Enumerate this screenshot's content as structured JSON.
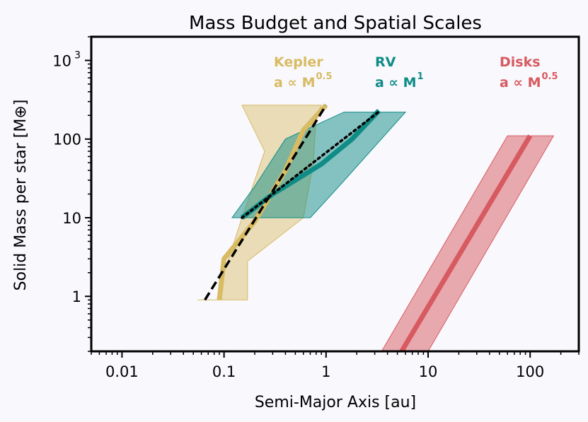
{
  "chart_data": {
    "type": "line",
    "title": "Mass Budget and Spatial Scales",
    "xlabel": "Semi-Major Axis [au]",
    "ylabel": "Solid Mass per star [M⊕]",
    "xscale": "log",
    "yscale": "log",
    "xlim": [
      0.005,
      300
    ],
    "ylim": [
      0.2,
      2000
    ],
    "xticks": [
      {
        "value": 0.01,
        "label": "0.01"
      },
      {
        "value": 0.1,
        "label": "0.1"
      },
      {
        "value": 1,
        "label": "1"
      },
      {
        "value": 10,
        "label": "10"
      },
      {
        "value": 100,
        "label": "100"
      }
    ],
    "yticks": [
      {
        "value": 1,
        "label": "1"
      },
      {
        "value": 10,
        "label": "10"
      },
      {
        "value": 100,
        "label": "100"
      },
      {
        "value": 1000,
        "label": "10",
        "sup": "3"
      }
    ],
    "colors": {
      "kepler": "#d8bb62",
      "rv": "#108c86",
      "disks": "#d75a60",
      "background": "#f8f8fd"
    },
    "series": [
      {
        "name": "Kepler",
        "color": "#d8bb62",
        "x": [
          0.09,
          0.1,
          0.2,
          0.4,
          0.6,
          1.0
        ],
        "y": [
          0.9,
          3,
          9,
          40,
          130,
          270
        ],
        "band": [
          [
            0.055,
            0.9
          ],
          [
            0.17,
            0.9
          ],
          [
            0.17,
            2.8
          ],
          [
            0.6,
            10
          ],
          [
            0.75,
            50
          ],
          [
            0.8,
            200
          ],
          [
            0.9,
            270
          ],
          [
            0.15,
            270
          ],
          [
            0.25,
            70
          ],
          [
            0.15,
            10
          ],
          [
            0.1,
            2
          ],
          [
            0.09,
            0.9
          ]
        ]
      },
      {
        "name": "RV",
        "color": "#108c86",
        "x": [
          0.15,
          0.3,
          0.5,
          0.9,
          1.8,
          3.3
        ],
        "y": [
          10,
          20,
          30,
          48,
          100,
          230
        ],
        "band": [
          [
            0.12,
            10
          ],
          [
            0.7,
            10
          ],
          [
            1.3,
            24
          ],
          [
            6,
            220
          ],
          [
            1.5,
            220
          ],
          [
            0.4,
            100
          ],
          [
            0.2,
            25
          ],
          [
            0.12,
            10
          ]
        ]
      },
      {
        "name": "Disks",
        "color": "#d75a60",
        "x": [
          5.5,
          100
        ],
        "y": [
          0.2,
          110
        ],
        "band": [
          [
            3.5,
            0.2
          ],
          [
            10,
            0.2
          ],
          [
            170,
            110
          ],
          [
            60,
            110
          ],
          [
            3.5,
            0.2
          ]
        ]
      }
    ],
    "fits": [
      {
        "name": "Kepler fit",
        "style": "dashed",
        "x": [
          0.065,
          1.0
        ],
        "y": [
          0.9,
          270
        ]
      },
      {
        "name": "RV fit",
        "style": "dotted",
        "x": [
          0.15,
          3.4
        ],
        "y": [
          10,
          230
        ]
      }
    ],
    "annotations": [
      {
        "name": "Kepler",
        "relation": "a ∝ M",
        "exponent": "0.5",
        "color": "#d8bb62"
      },
      {
        "name": "RV",
        "relation": "a ∝ M",
        "exponent": "1",
        "color": "#108c86"
      },
      {
        "name": "Disks",
        "relation": "a ∝ M",
        "exponent": "0.5",
        "color": "#d75a60"
      }
    ]
  }
}
